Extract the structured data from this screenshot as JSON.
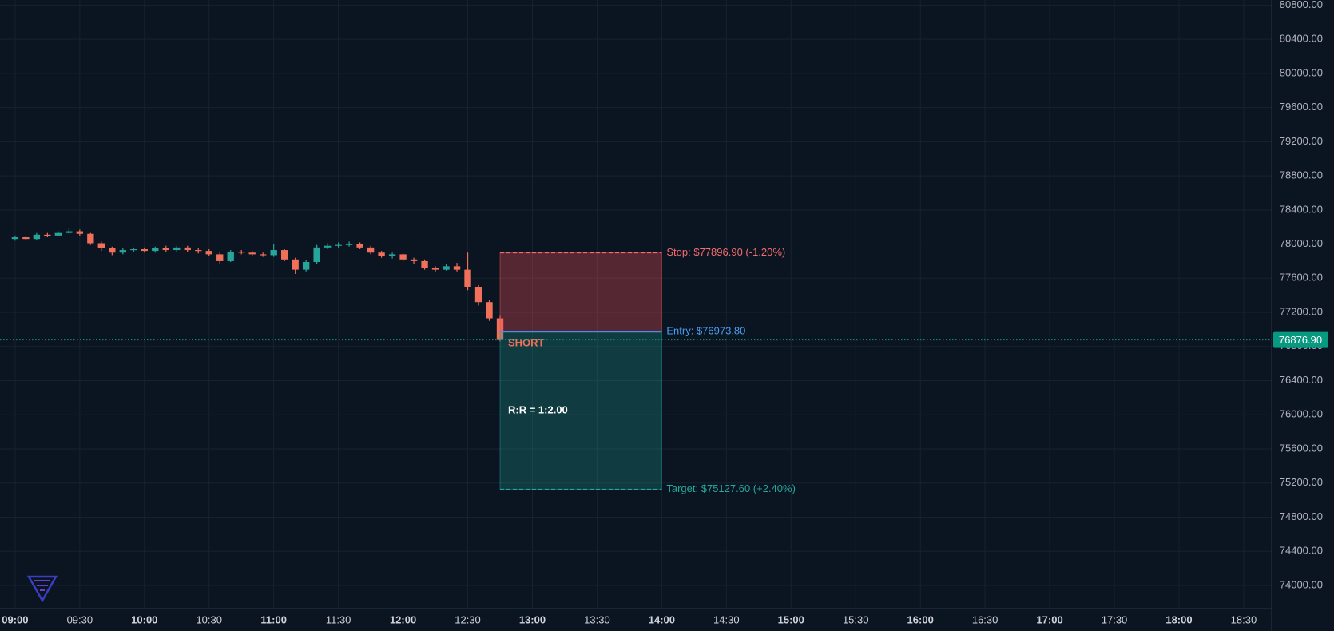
{
  "chart_data": {
    "type": "candlestick",
    "x": [
      "09:00",
      "09:05",
      "09:10",
      "09:15",
      "09:20",
      "09:25",
      "09:30",
      "09:35",
      "09:40",
      "09:45",
      "09:50",
      "09:55",
      "10:00",
      "10:05",
      "10:10",
      "10:15",
      "10:20",
      "10:25",
      "10:30",
      "10:35",
      "10:40",
      "10:45",
      "10:50",
      "10:55",
      "11:00",
      "11:05",
      "11:10",
      "11:15",
      "11:20",
      "11:25",
      "11:30",
      "11:35",
      "11:40",
      "11:45",
      "11:50",
      "11:55",
      "12:00",
      "12:05",
      "12:10",
      "12:15",
      "12:20",
      "12:25",
      "12:30",
      "12:35",
      "12:40",
      "12:45"
    ],
    "open": [
      78060,
      78080,
      78060,
      78110,
      78100,
      78130,
      78150,
      78120,
      78010,
      77950,
      77900,
      77930,
      77940,
      77920,
      77950,
      77930,
      77960,
      77930,
      77920,
      77880,
      77800,
      77910,
      77900,
      77880,
      77870,
      77930,
      77820,
      77700,
      77790,
      77960,
      77980,
      77990,
      78000,
      77960,
      77900,
      77860,
      77880,
      77820,
      77800,
      77720,
      77700,
      77740,
      77700,
      77500,
      77320,
      77130
    ],
    "high": [
      78100,
      78100,
      78130,
      78130,
      78150,
      78180,
      78170,
      78130,
      78030,
      77970,
      77950,
      77960,
      77960,
      77970,
      77980,
      77980,
      77980,
      77950,
      77940,
      77900,
      77930,
      77930,
      77920,
      77900,
      78000,
      77940,
      77840,
      77810,
      77990,
      78010,
      78020,
      78030,
      78020,
      77980,
      77920,
      77900,
      77890,
      77840,
      77820,
      77740,
      77770,
      77780,
      77900,
      77520,
      77340,
      77160
    ],
    "low": [
      78040,
      78040,
      78050,
      78080,
      78090,
      78120,
      78100,
      77990,
      77920,
      77870,
      77880,
      77910,
      77900,
      77900,
      77910,
      77910,
      77910,
      77890,
      77860,
      77770,
      77790,
      77880,
      77860,
      77850,
      77850,
      77800,
      77650,
      77680,
      77770,
      77940,
      77960,
      77970,
      77940,
      77880,
      77840,
      77830,
      77800,
      77770,
      77700,
      77680,
      77690,
      77680,
      77460,
      77280,
      77100,
      76860
    ],
    "close": [
      78080,
      78060,
      78110,
      78100,
      78130,
      78150,
      78120,
      78010,
      77950,
      77900,
      77930,
      77940,
      77920,
      77950,
      77930,
      77960,
      77930,
      77920,
      77880,
      77800,
      77910,
      77900,
      77880,
      77870,
      77930,
      77820,
      77700,
      77790,
      77960,
      77980,
      77990,
      78000,
      77960,
      77900,
      77860,
      77880,
      77820,
      77800,
      77720,
      77700,
      77740,
      77700,
      77500,
      77320,
      77130,
      76876.9
    ],
    "up_color": "#26a69a",
    "down_color": "#f0705a",
    "xlim": [
      "08:53",
      "18:43"
    ],
    "xticks": [
      "09:00",
      "09:30",
      "10:00",
      "10:30",
      "11:00",
      "11:30",
      "12:00",
      "12:30",
      "13:00",
      "13:30",
      "14:00",
      "14:30",
      "15:00",
      "15:30",
      "16:00",
      "16:30",
      "17:00",
      "17:30",
      "18:00",
      "18:30"
    ],
    "ylim": [
      73728,
      80860
    ],
    "yticks": [
      {
        "value": 74000,
        "label": "74000.00"
      },
      {
        "value": 74400,
        "label": "74400.00"
      },
      {
        "value": 74800,
        "label": "74800.00"
      },
      {
        "value": 75200,
        "label": "75200.00"
      },
      {
        "value": 75600,
        "label": "75600.00"
      },
      {
        "value": 76000,
        "label": "76000.00"
      },
      {
        "value": 76400,
        "label": "76400.00"
      },
      {
        "value": 76800,
        "label": "76800.00"
      },
      {
        "value": 77200,
        "label": "77200.00"
      },
      {
        "value": 77600,
        "label": "77600.00"
      },
      {
        "value": 78000,
        "label": "78000.00"
      },
      {
        "value": 78400,
        "label": "78400.00"
      },
      {
        "value": 78800,
        "label": "78800.00"
      },
      {
        "value": 79200,
        "label": "79200.00"
      },
      {
        "value": 79600,
        "label": "79600.00"
      },
      {
        "value": 80000,
        "label": "80000.00"
      },
      {
        "value": 80400,
        "label": "80400.00"
      },
      {
        "value": 80800,
        "label": "80800.00"
      }
    ],
    "grid": true,
    "last_price": {
      "value": 76876.9,
      "label": "76876.90"
    },
    "last_price_color": "#089981",
    "position": {
      "side": "SHORT",
      "entry": 76973.8,
      "stop": 77896.9,
      "target": 75127.6,
      "start": "12:45",
      "end": "14:00",
      "entry_label": "Entry: $76973.80",
      "stop_label": "Stop: $77896.90 (-1.20%)",
      "target_label": "Target: $75127.60 (+2.40%)",
      "rr_label": "R:R = 1:2.00"
    }
  }
}
